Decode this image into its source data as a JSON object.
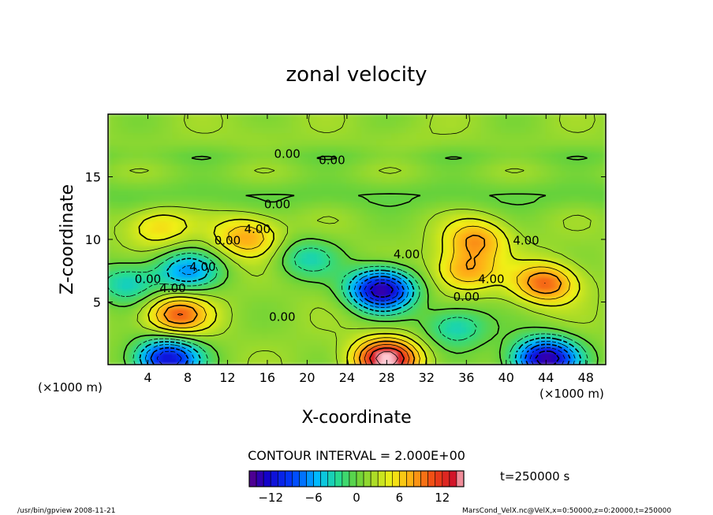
{
  "chart_data": {
    "type": "heatmap",
    "title": "zonal velocity",
    "xlabel": "X-coordinate",
    "ylabel": "Z-coordinate",
    "x_unit": "(×1000 m)",
    "y_unit": "(×1000 m)",
    "xlim": [
      0,
      50
    ],
    "ylim": [
      0,
      20
    ],
    "x_ticks": [
      4,
      8,
      12,
      16,
      20,
      24,
      28,
      32,
      36,
      40,
      44,
      48
    ],
    "y_ticks": [
      5,
      10,
      15
    ],
    "contour_interval_text": "CONTOUR INTERVAL = 2.000E+00",
    "time_text": "t=250000 s",
    "colorbar": {
      "min": -15,
      "max": 15,
      "ticks": [
        -12,
        -6,
        0,
        6,
        12
      ]
    },
    "contour_labels": [
      {
        "text": "0.00",
        "x": 18,
        "y": 16.5
      },
      {
        "text": "0.00",
        "x": 22.5,
        "y": 16.0
      },
      {
        "text": "0.00",
        "x": 17,
        "y": 12.5
      },
      {
        "text": "4.00",
        "x": 15,
        "y": 10.5
      },
      {
        "text": "0.00",
        "x": 12,
        "y": 9.6
      },
      {
        "text": "4.00",
        "x": 9.5,
        "y": 7.5
      },
      {
        "text": "0.00",
        "x": 4,
        "y": 6.5
      },
      {
        "text": "4.00",
        "x": 6.5,
        "y": 5.8
      },
      {
        "text": "0.00",
        "x": 17.5,
        "y": 3.5
      },
      {
        "text": "4.00",
        "x": 30,
        "y": 8.5
      },
      {
        "text": "4.00",
        "x": 42,
        "y": 9.6
      },
      {
        "text": "4.00",
        "x": 38.5,
        "y": 6.5
      },
      {
        "text": "0.00",
        "x": 36,
        "y": 5.1
      }
    ],
    "features": [
      {
        "x": 7,
        "z": 4,
        "value": 10
      },
      {
        "x": 27.5,
        "z": 6,
        "value": -14
      },
      {
        "x": 28,
        "z": 0.5,
        "value": 15
      },
      {
        "x": 44,
        "z": 6.5,
        "value": 10
      },
      {
        "x": 36,
        "z": 7.5,
        "value": 8
      },
      {
        "x": 37,
        "z": 10,
        "value": 8
      },
      {
        "x": 14,
        "z": 10.2,
        "value": 8
      },
      {
        "x": 5,
        "z": 11,
        "value": 6
      },
      {
        "x": 44,
        "z": 0.5,
        "value": -14
      },
      {
        "x": 6,
        "z": 0.5,
        "value": -12
      },
      {
        "x": 8,
        "z": 7.5,
        "value": -6
      },
      {
        "x": 35,
        "z": 3,
        "value": -4
      },
      {
        "x": 20,
        "z": 8.5,
        "value": -3
      },
      {
        "x": 2,
        "z": 6.5,
        "value": -4
      },
      {
        "x": 30,
        "z": 18,
        "value": 2
      },
      {
        "x": 15,
        "z": 18.5,
        "value": 2
      }
    ]
  },
  "footer": {
    "left": "/usr/bin/gpview   2008-11-21",
    "right": "MarsCond_VelX.nc@VelX,x=0:50000,z=0:20000,t=250000"
  }
}
